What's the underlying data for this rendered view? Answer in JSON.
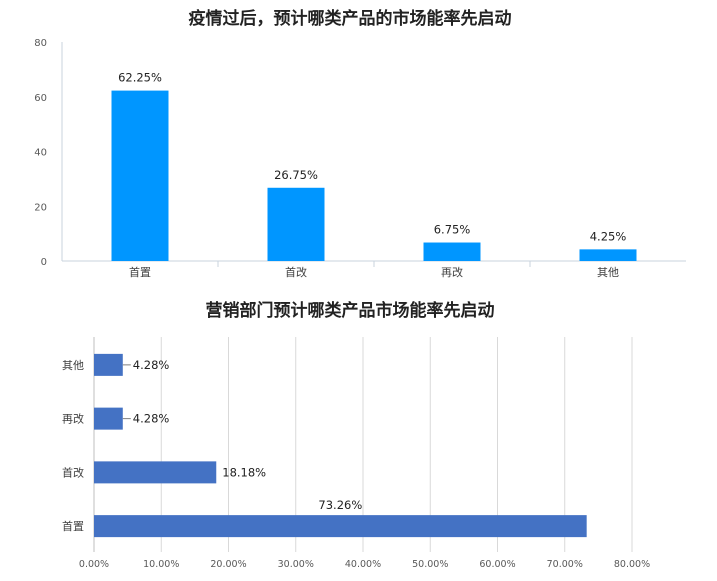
{
  "chart_data": [
    {
      "type": "bar",
      "orientation": "vertical",
      "title": "疫情过后，预计哪类产品的市场能率先启动",
      "categories": [
        "首置",
        "首改",
        "再改",
        "其他"
      ],
      "values": [
        62.25,
        26.75,
        6.75,
        4.25
      ],
      "value_labels": [
        "62.25%",
        "26.75%",
        "6.75%",
        "4.25%"
      ],
      "ylim": [
        0,
        80
      ],
      "yticks": [
        "0",
        "20",
        "40",
        "60",
        "80"
      ],
      "grid": false,
      "color": "#0096FF"
    },
    {
      "type": "bar",
      "orientation": "horizontal",
      "title": "营销部门预计哪类产品市场能率先启动",
      "categories": [
        "其他",
        "再改",
        "首改",
        "首置"
      ],
      "values": [
        4.28,
        4.28,
        18.18,
        73.26
      ],
      "value_labels": [
        "4.28%",
        "4.28%",
        "18.18%",
        "73.26%"
      ],
      "xlim": [
        0,
        80
      ],
      "xticks": [
        "0.00%",
        "10.00%",
        "20.00%",
        "30.00%",
        "40.00%",
        "50.00%",
        "60.00%",
        "70.00%",
        "80.00%"
      ],
      "grid": true,
      "color": "#4472C4"
    }
  ]
}
